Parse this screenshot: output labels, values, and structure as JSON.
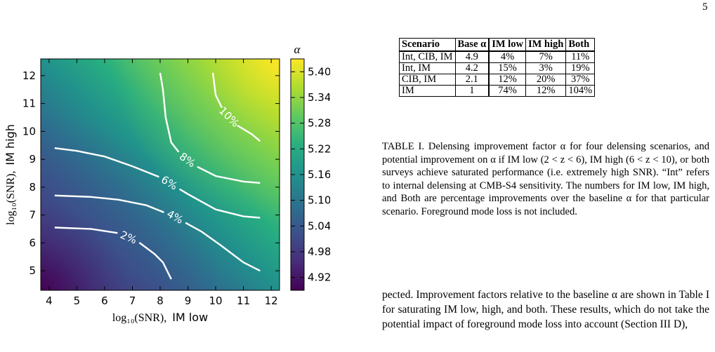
{
  "page_number": "5",
  "figure": {
    "colorbar_title": "α",
    "colorbar_ticks": [
      "5.40",
      "5.34",
      "5.28",
      "5.22",
      "5.16",
      "5.10",
      "5.04",
      "4.98",
      "4.92"
    ],
    "x_ticks": [
      "4",
      "5",
      "6",
      "7",
      "8",
      "9",
      "10",
      "11",
      "12"
    ],
    "y_ticks": [
      "5",
      "6",
      "7",
      "8",
      "9",
      "10",
      "11",
      "12"
    ],
    "xlabel_math": "log₁₀(SNR),",
    "xlabel_text": "IM low",
    "ylabel_math": "log₁₀(SNR),",
    "ylabel_text": "IM high",
    "contour_labels": [
      "2%",
      "4%",
      "6%",
      "8%",
      "10%"
    ]
  },
  "chart_data": {
    "type": "heatmap",
    "x_range": [
      3.7,
      12.3
    ],
    "y_range": [
      4.3,
      12.6
    ],
    "colorbar_range": [
      4.89,
      5.43
    ],
    "colormap": "viridis",
    "xlabel": "log10(SNR), IM low",
    "ylabel": "log10(SNR), IM high",
    "colorbar_label": "α",
    "contours": [
      {
        "label": "2%",
        "points": [
          [
            4.2,
            6.55
          ],
          [
            5.5,
            6.5
          ],
          [
            6.5,
            6.35
          ],
          [
            7.2,
            6.05
          ],
          [
            7.8,
            5.6
          ],
          [
            8.1,
            5.3
          ],
          [
            8.4,
            4.7
          ]
        ]
      },
      {
        "label": "4%",
        "points": [
          [
            4.2,
            7.7
          ],
          [
            5.5,
            7.65
          ],
          [
            6.5,
            7.55
          ],
          [
            7.5,
            7.35
          ],
          [
            8.5,
            6.95
          ],
          [
            9.5,
            6.4
          ],
          [
            10.2,
            5.9
          ],
          [
            11,
            5.3
          ],
          [
            11.6,
            5.0
          ]
        ]
      },
      {
        "label": "6%",
        "points": [
          [
            4.2,
            9.4
          ],
          [
            5,
            9.3
          ],
          [
            6,
            9.1
          ],
          [
            7,
            8.75
          ],
          [
            8,
            8.35
          ],
          [
            9,
            7.75
          ],
          [
            10,
            7.2
          ],
          [
            11,
            6.95
          ],
          [
            11.6,
            6.9
          ]
        ]
      },
      {
        "label": "8%",
        "points": [
          [
            8.0,
            12.1
          ],
          [
            8.1,
            11.5
          ],
          [
            8.2,
            10.5
          ],
          [
            8.4,
            9.6
          ],
          [
            8.8,
            9.1
          ],
          [
            9.3,
            8.75
          ],
          [
            10,
            8.4
          ],
          [
            11,
            8.2
          ],
          [
            11.6,
            8.15
          ]
        ]
      },
      {
        "label": "10%",
        "points": [
          [
            9.9,
            12.1
          ],
          [
            10,
            11.3
          ],
          [
            10.3,
            10.7
          ],
          [
            10.8,
            10.2
          ],
          [
            11.3,
            9.9
          ],
          [
            11.6,
            9.65
          ]
        ]
      }
    ]
  },
  "table": {
    "headers": [
      "Scenario",
      "Base α",
      "IM low",
      "IM high",
      "Both"
    ],
    "rows": [
      [
        "Int, CIB, IM",
        "4.9",
        "4%",
        "7%",
        "11%"
      ],
      [
        "Int, IM",
        "4.2",
        "15%",
        "3%",
        "19%"
      ],
      [
        "CIB, IM",
        "2.1",
        "12%",
        "20%",
        "37%"
      ],
      [
        "IM",
        "1",
        "74%",
        "12%",
        "104%"
      ]
    ]
  },
  "caption": "TABLE I. Delensing improvement factor α for four delensing scenarios, and potential improvement on α if IM low (2 < z < 6), IM high (6 < z < 10), or both surveys achieve saturated performance (i.e. extremely high SNR). “Int” refers to internal delensing at CMB-S4 sensitivity. The numbers for IM low, IM high, and Both are percentage improvements over the baseline α for that particular scenario. Foreground mode loss is not included.",
  "body_text": "pected. Improvement factors relative to the baseline α are shown in Table I for saturating IM low, high, and both. These results, which do not take the potential impact of foreground mode loss into account (Section III D),"
}
